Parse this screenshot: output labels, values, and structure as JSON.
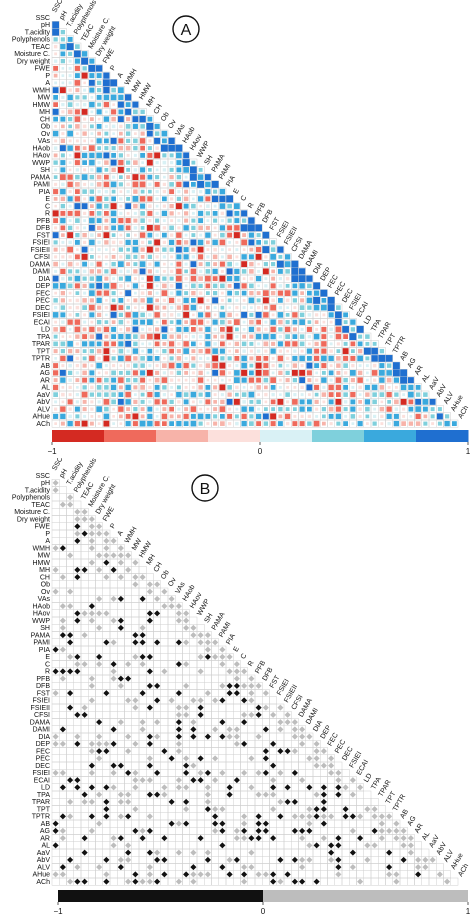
{
  "panels": [
    {
      "letter": "A",
      "mode": "color"
    },
    {
      "letter": "B",
      "mode": "mono"
    }
  ],
  "colors": {
    "strong_negative": "#d42a22",
    "mid_negative": "#ef6a5c",
    "light_negative": "#f7b3a9",
    "pale_negative": "#fce0dc",
    "pale_positive": "#d9f1f5",
    "light_positive": "#7fd0dc",
    "mid_positive": "#3aa9dd",
    "strong_positive": "#1f6fd0",
    "mono_negative": "#111111",
    "mono_positive": "#bdbdbd",
    "grid": "#cfcfcf"
  },
  "chart_data": [
    {
      "type": "heatmap",
      "title": "",
      "variables": [
        "SSC",
        "pH",
        "T.acidity",
        "Polyphenols",
        "TEAC",
        "Moisture C.",
        "Dry weight",
        "FWE",
        "P",
        "A",
        "WMH",
        "MW",
        "HMW",
        "MH",
        "CH",
        "Ob",
        "Ov",
        "VAs",
        "HAob",
        "HAov",
        "WWP",
        "SH",
        "PAMA",
        "PAMI",
        "PIA",
        "E",
        "C",
        "R",
        "PFB",
        "DFB",
        "FST",
        "FSIEI",
        "FSIEII",
        "CFSI",
        "DAMA",
        "DAMI",
        "DIA",
        "DEP",
        "FEC",
        "PEC",
        "DEC",
        "FSIEI",
        "ECAI",
        "LD",
        "TPA",
        "TPAR",
        "TPT",
        "TPTR",
        "AB",
        "AG",
        "AR",
        "AL",
        "AaV",
        "AbV",
        "ALV",
        "AHue",
        "ACh"
      ],
      "color_scale": {
        "min": -1,
        "mid": 0,
        "max": 1,
        "tick_labels": [
          "−1",
          "0",
          "1"
        ]
      },
      "legend": "bottom"
    },
    {
      "type": "heatmap",
      "title": "",
      "variables": [
        "SSC",
        "pH",
        "T.acidity",
        "Polyphenols",
        "TEAC",
        "Moisture C.",
        "Dry weight",
        "FWE",
        "P",
        "A",
        "WMH",
        "MW",
        "HMW",
        "MH",
        "CH",
        "Ob",
        "Ov",
        "VAs",
        "HAob",
        "HAov",
        "WWP",
        "SH",
        "PAMA",
        "PAMI",
        "PIA",
        "E",
        "C",
        "R",
        "PFB",
        "DFB",
        "FST",
        "FSIEI",
        "FSIEII",
        "CFSI",
        "DAMA",
        "DAMI",
        "DIA",
        "DEP",
        "FEC",
        "PEC",
        "DEC",
        "FSIEI",
        "ECAI",
        "LD",
        "TPA",
        "TPAR",
        "TPT",
        "TPTR",
        "AB",
        "AG",
        "AR",
        "AL",
        "AaV",
        "AbV",
        "ALV",
        "AHue",
        "ACh"
      ],
      "color_scale": {
        "min": -1,
        "mid": 0,
        "max": 1,
        "tick_labels": [
          "−1",
          "0",
          "1"
        ]
      },
      "legend": "bottom"
    }
  ]
}
